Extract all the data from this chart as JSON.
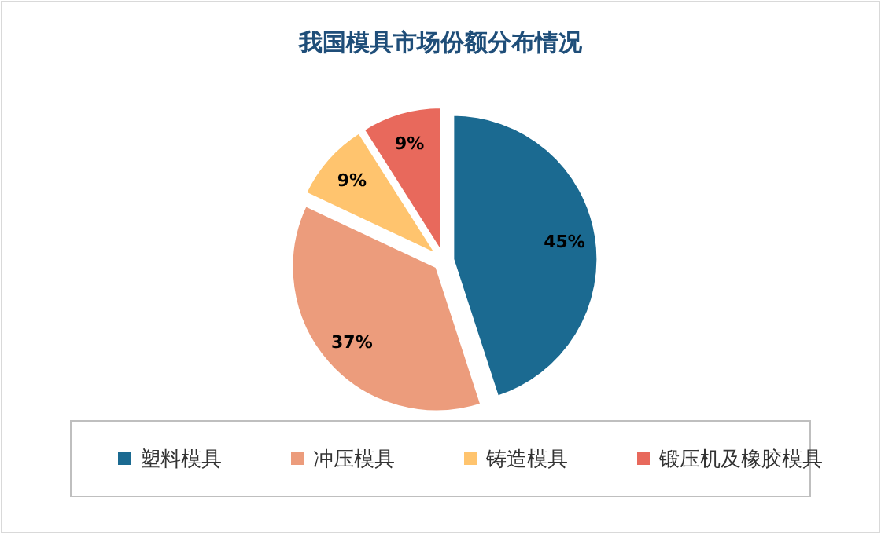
{
  "chart_data": {
    "type": "pie",
    "title": "我国模具市场份额分布情况",
    "categories": [
      "塑料模具",
      "冲压模具",
      "铸造模具",
      "锻压机及橡胶模具"
    ],
    "values": [
      45,
      37,
      9,
      9
    ],
    "colors": [
      "#1b6a91",
      "#ec9c7c",
      "#ffc46e",
      "#e8695c"
    ],
    "value_labels": [
      "45%",
      "37%",
      "9%",
      "9%"
    ],
    "legend": "bottom"
  }
}
